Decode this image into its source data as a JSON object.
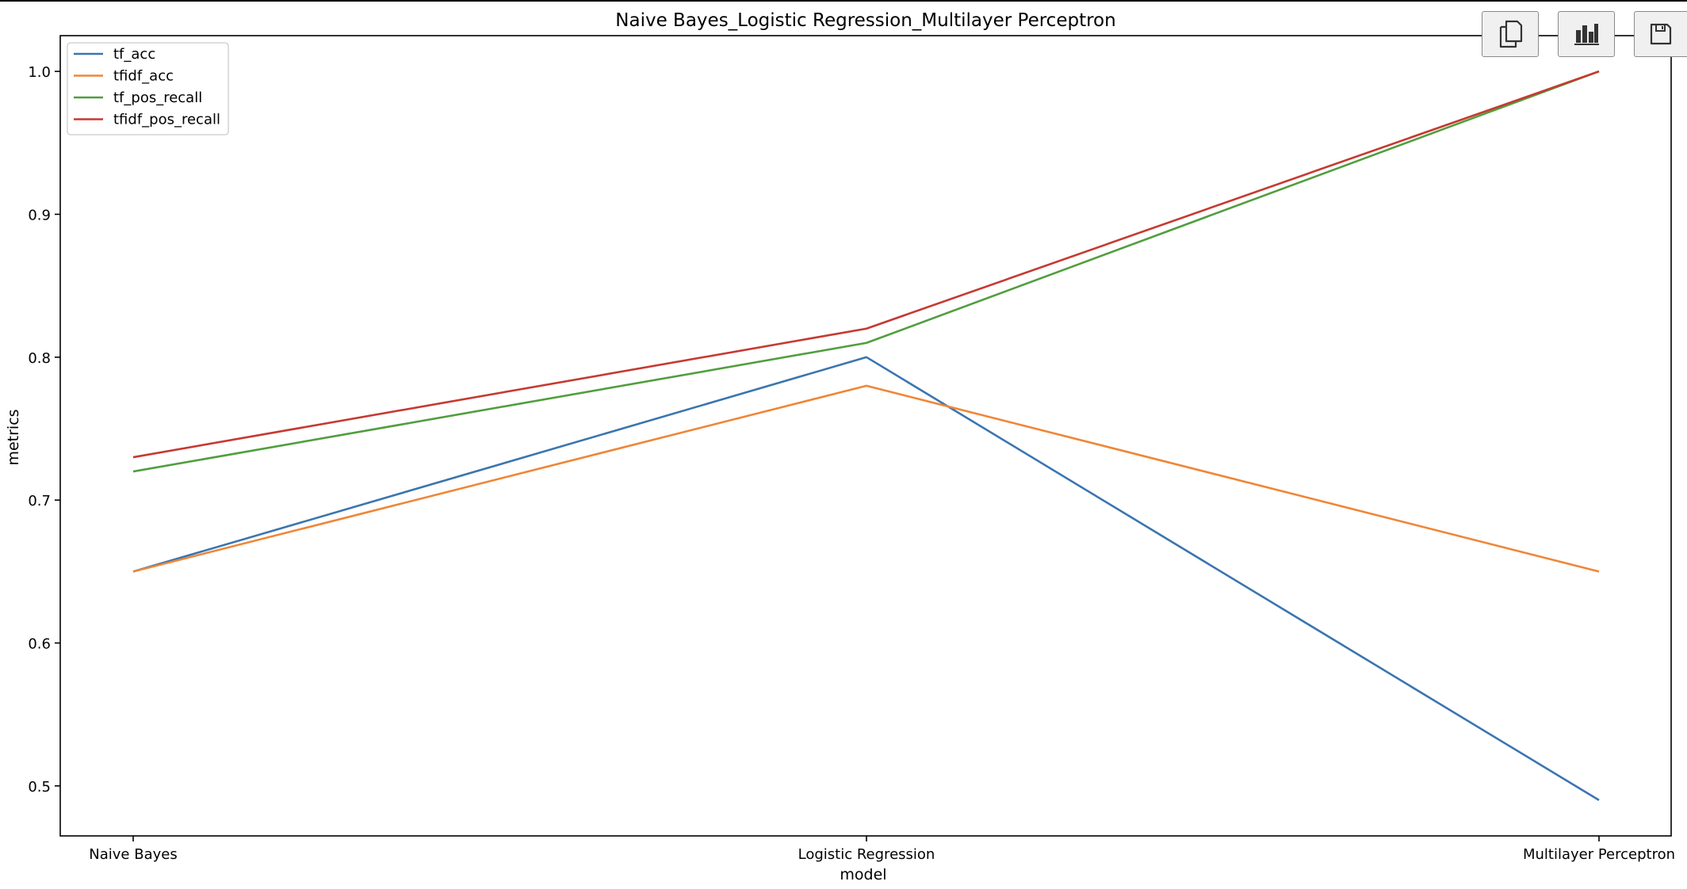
{
  "toolbar": {
    "buttons": [
      {
        "icon": "copy-icon"
      },
      {
        "icon": "bar-chart-icon"
      },
      {
        "icon": "save-icon"
      }
    ]
  },
  "chart_data": {
    "type": "line",
    "title": "Naive Bayes_Logistic Regression_Multilayer Perceptron",
    "xlabel": "model",
    "ylabel": "metrics",
    "categories": [
      "Naive Bayes",
      "Logistic Regression",
      "Multilayer Perceptron"
    ],
    "ylim": [
      0.465,
      1.025
    ],
    "yticks": [
      "0.5",
      "0.6",
      "0.7",
      "0.8",
      "0.9",
      "1.0"
    ],
    "grid": false,
    "legend_position": "top-left",
    "series": [
      {
        "name": "tf_acc",
        "color": "#3b75af",
        "values": [
          0.65,
          0.8,
          0.49
        ]
      },
      {
        "name": "tfidf_acc",
        "color": "#ef8636",
        "values": [
          0.65,
          0.78,
          0.65
        ]
      },
      {
        "name": "tf_pos_recall",
        "color": "#519e3e",
        "values": [
          0.72,
          0.81,
          1.0
        ]
      },
      {
        "name": "tfidf_pos_recall",
        "color": "#c53a32",
        "values": [
          0.73,
          0.82,
          1.0
        ]
      }
    ]
  }
}
